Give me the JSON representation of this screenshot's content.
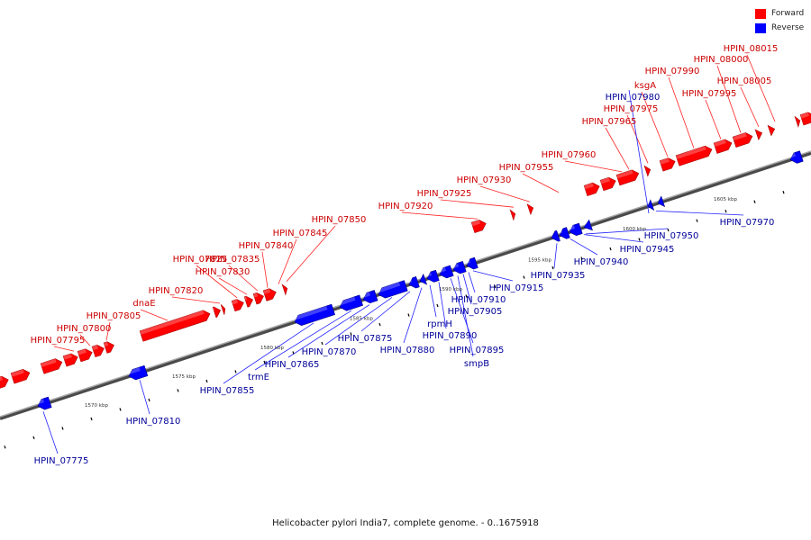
{
  "legend": [
    {
      "label": "Forward",
      "color": "#ff0000"
    },
    {
      "label": "Reverse",
      "color": "#0000ff"
    }
  ],
  "caption": "Helicobacter pylori India7, complete genome. - 0..1675918",
  "colors": {
    "forward": "#ff0000",
    "reverse": "#0000ff",
    "forward_label": "#cc0000",
    "reverse_label": "#000099",
    "backbone": "#808080"
  },
  "ticks": [
    "1570 kbp",
    "1575 kbp",
    "1580 kbp",
    "1585 kbp",
    "1590 kbp",
    "1595 kbp",
    "1600 kbp",
    "1605 kbp"
  ],
  "forward_labels": [
    "HPIN_07795",
    "HPIN_07800",
    "HPIN_07805",
    "dnaE",
    "HPIN_07820",
    "HPIN_07825",
    "HPIN_07830",
    "HPIN_07835",
    "HPIN_07840",
    "HPIN_07845",
    "HPIN_07850",
    "HPIN_07920",
    "HPIN_07925",
    "HPIN_07930",
    "HPIN_07955",
    "HPIN_07960",
    "HPIN_07965",
    "HPIN_07975",
    "ksgA",
    "HPIN_07990",
    "HPIN_07995",
    "HPIN_08000",
    "HPIN_08005",
    "HPIN_08015"
  ],
  "reverse_labels": [
    "HPIN_07775",
    "HPIN_07810",
    "HPIN_07855",
    "trmE",
    "HPIN_07865",
    "HPIN_07870",
    "HPIN_07875",
    "HPIN_07880",
    "rpmH",
    "HPIN_07890",
    "HPIN_07895",
    "smpB",
    "HPIN_07905",
    "HPIN_07910",
    "HPIN_07915",
    "HPIN_07935",
    "HPIN_07940",
    "HPIN_07945",
    "HPIN_07950",
    "HPIN_07970",
    "HPIN_07980"
  ]
}
